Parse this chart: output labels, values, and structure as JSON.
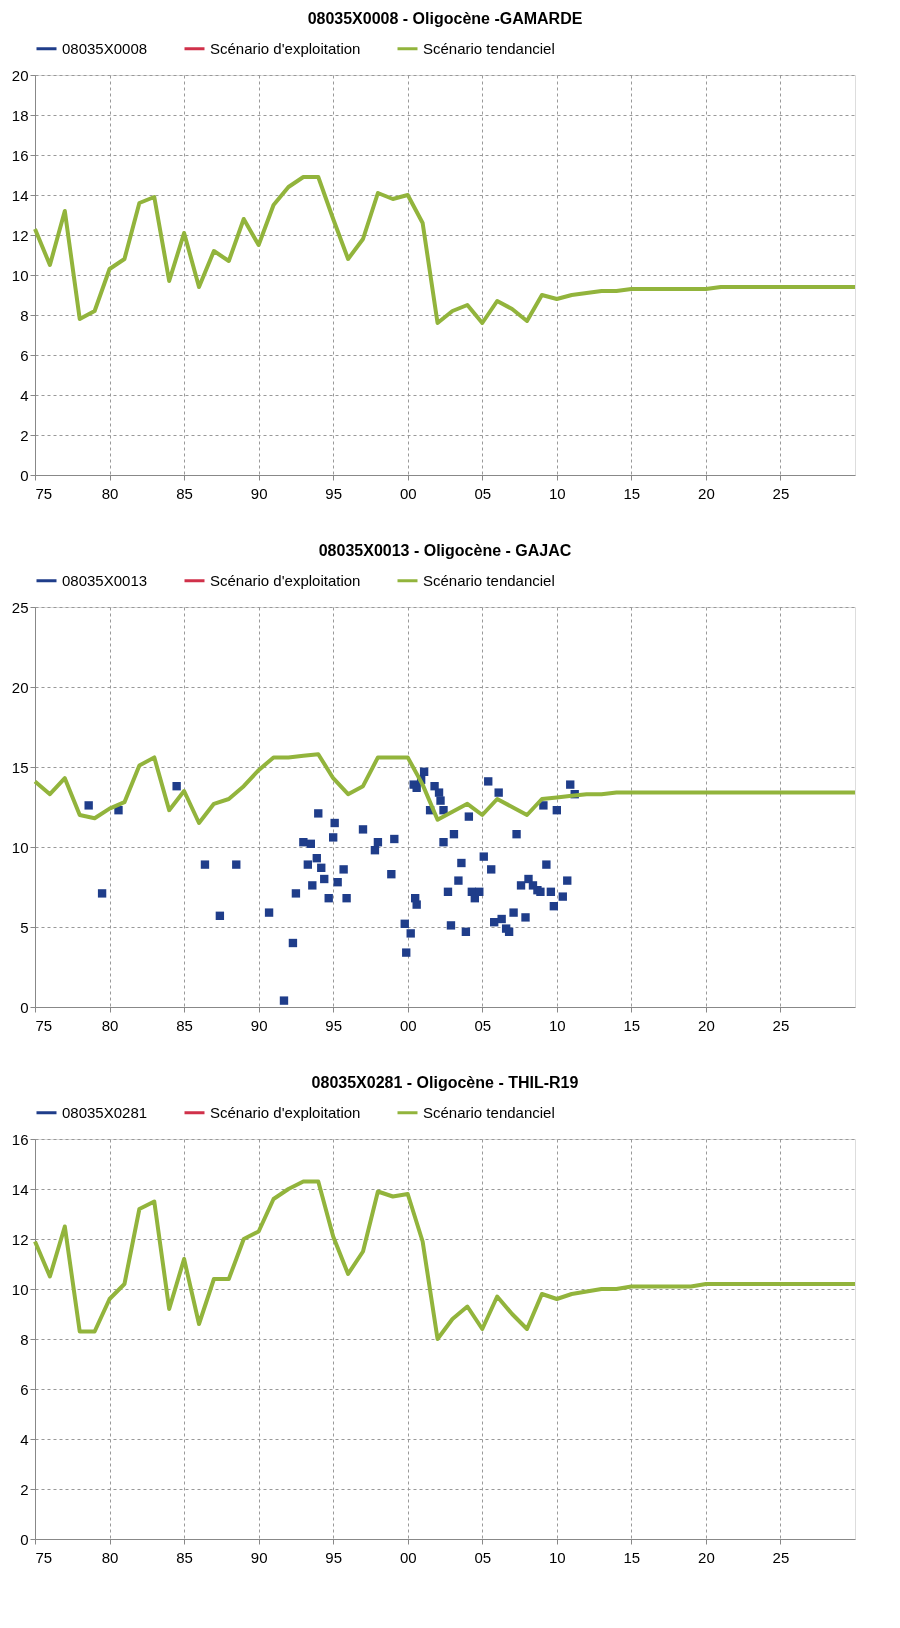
{
  "chart_data": [
    {
      "type": "line",
      "title": "08035X0008 - Oligocène -GAMARDE",
      "legend": "top",
      "grid": true,
      "line_style": "solid",
      "x": [
        1975,
        1976,
        1977,
        1978,
        1979,
        1980,
        1981,
        1982,
        1983,
        1984,
        1985,
        1986,
        1987,
        1988,
        1989,
        1990,
        1991,
        1992,
        1993,
        1994,
        1995,
        1996,
        1997,
        1998,
        1999,
        2000,
        2001,
        2002,
        2003,
        2004,
        2005,
        2006,
        2007,
        2008,
        2009,
        2010,
        2011,
        2012,
        2013,
        2014,
        2015,
        2016,
        2017,
        2018,
        2019,
        2020,
        2021,
        2022,
        2023,
        2024,
        2025,
        2026,
        2027,
        2028,
        2029,
        2030
      ],
      "xlim": [
        1975,
        2030
      ],
      "xticks": [
        {
          "value": 1975,
          "label": "75"
        },
        {
          "value": 1980,
          "label": "80"
        },
        {
          "value": 1985,
          "label": "85"
        },
        {
          "value": 1990,
          "label": "90"
        },
        {
          "value": 1995,
          "label": "95"
        },
        {
          "value": 2000,
          "label": "00"
        },
        {
          "value": 2005,
          "label": "05"
        },
        {
          "value": 2010,
          "label": "10"
        },
        {
          "value": 2015,
          "label": "15"
        },
        {
          "value": 2020,
          "label": "20"
        },
        {
          "value": 2025,
          "label": "25"
        }
      ],
      "ylim": [
        0,
        20
      ],
      "yticks": [
        0,
        2,
        4,
        6,
        8,
        10,
        12,
        14,
        16,
        18,
        20
      ],
      "series": [
        {
          "name": "08035X0008",
          "type": "line",
          "marker": "square",
          "color": "#1f3d8a",
          "values": [
            null,
            null,
            null,
            null,
            null,
            null,
            null,
            null,
            null,
            null,
            null,
            null,
            null,
            null,
            null,
            null,
            null,
            null,
            null,
            null,
            null,
            null,
            null,
            null,
            null,
            null,
            null,
            null,
            null,
            null,
            null,
            null,
            null,
            null,
            null,
            null,
            null,
            null,
            null,
            null,
            null,
            null,
            null,
            null,
            null,
            null,
            null,
            null,
            null,
            null,
            null,
            null,
            null,
            null,
            null,
            null
          ]
        },
        {
          "name": "Scénario d'exploitation",
          "type": "line",
          "color": "#d0314a",
          "values": [
            null,
            null,
            null,
            null,
            null,
            null,
            null,
            null,
            null,
            null,
            null,
            null,
            null,
            null,
            null,
            null,
            null,
            null,
            null,
            null,
            null,
            null,
            null,
            null,
            null,
            null,
            null,
            null,
            null,
            null,
            null,
            null,
            null,
            null,
            null,
            null,
            null,
            null,
            null,
            null,
            null,
            null,
            null,
            null,
            null,
            null,
            null,
            null,
            null,
            null,
            null,
            null,
            null,
            null,
            null,
            null
          ]
        },
        {
          "name": "Scénario tendanciel",
          "type": "line",
          "color": "#92b43c",
          "values": [
            12.3,
            10.5,
            13.2,
            7.8,
            8.2,
            10.3,
            10.8,
            13.6,
            13.9,
            9.7,
            12.1,
            9.4,
            11.2,
            10.7,
            12.8,
            11.5,
            13.5,
            14.4,
            14.9,
            14.9,
            12.8,
            10.8,
            11.8,
            14.1,
            13.8,
            14.0,
            12.6,
            7.6,
            8.2,
            8.5,
            7.6,
            8.7,
            8.3,
            7.7,
            9.0,
            8.8,
            9.0,
            9.1,
            9.2,
            9.2,
            9.3,
            9.3,
            9.3,
            9.3,
            9.3,
            9.3,
            9.4,
            9.4,
            9.4,
            9.4,
            9.4,
            9.4,
            9.4,
            9.4,
            9.4,
            9.4
          ]
        }
      ]
    },
    {
      "type": "line",
      "title": "08035X0013 - Oligocène - GAJAC",
      "legend": "top",
      "grid": true,
      "line_style": "solid",
      "x": [
        1975,
        1976,
        1977,
        1978,
        1979,
        1980,
        1981,
        1982,
        1983,
        1984,
        1985,
        1986,
        1987,
        1988,
        1989,
        1990,
        1991,
        1992,
        1993,
        1994,
        1995,
        1996,
        1997,
        1998,
        1999,
        2000,
        2001,
        2002,
        2003,
        2004,
        2005,
        2006,
        2007,
        2008,
        2009,
        2010,
        2011,
        2012,
        2013,
        2014,
        2015,
        2016,
        2017,
        2018,
        2019,
        2020,
        2021,
        2022,
        2023,
        2024,
        2025,
        2026,
        2027,
        2028,
        2029,
        2030
      ],
      "xlim": [
        1975,
        2030
      ],
      "xticks": [
        {
          "value": 1975,
          "label": "75"
        },
        {
          "value": 1980,
          "label": "80"
        },
        {
          "value": 1985,
          "label": "85"
        },
        {
          "value": 1990,
          "label": "90"
        },
        {
          "value": 1995,
          "label": "95"
        },
        {
          "value": 2000,
          "label": "00"
        },
        {
          "value": 2005,
          "label": "05"
        },
        {
          "value": 2010,
          "label": "10"
        },
        {
          "value": 2015,
          "label": "15"
        },
        {
          "value": 2020,
          "label": "20"
        },
        {
          "value": 2025,
          "label": "25"
        }
      ],
      "ylim": [
        0,
        25
      ],
      "yticks": [
        0,
        5,
        10,
        15,
        20,
        25
      ],
      "series": [
        {
          "name": "08035X0013",
          "type": "scatter",
          "marker": "square",
          "color": "#1f3d8a",
          "x": [
            1978.6,
            1979.5,
            1980.6,
            1984.5,
            1986.4,
            1987.4,
            1988.5,
            1990.7,
            1991.7,
            1992.3,
            1992.5,
            1993.0,
            1993.5,
            1993.3,
            1993.6,
            1993.9,
            1994.0,
            1994.2,
            1994.4,
            1994.7,
            1995.1,
            1995.0,
            1995.3,
            1995.7,
            1995.9,
            1997.0,
            1997.8,
            1998.0,
            1998.9,
            1999.1,
            1999.8,
            1999.9,
            2000.2,
            2000.4,
            2000.6,
            2001.1,
            2000.9,
            2000.5,
            2000.6,
            2001.8,
            2002.1,
            2002.2,
            2001.5,
            2002.4,
            2002.4,
            2003.1,
            2004.1,
            2002.7,
            2002.9,
            2003.4,
            2003.6,
            2003.9,
            2004.3,
            2004.5,
            2004.8,
            2005.1,
            2005.4,
            2005.6,
            2006.1,
            2005.8,
            2006.3,
            2006.6,
            2006.8,
            2007.1,
            2007.3,
            2007.9,
            2007.6,
            2008.1,
            2008.4,
            2008.7,
            2008.9,
            2009.1,
            2009.3,
            2009.6,
            2009.8,
            2010.0,
            2010.4,
            2010.7,
            2010.9,
            2011.2
          ],
          "values": [
            12.6,
            7.1,
            12.3,
            13.8,
            8.9,
            5.7,
            8.9,
            5.9,
            0.4,
            4.0,
            7.1,
            10.3,
            10.2,
            8.9,
            7.6,
            9.3,
            12.1,
            8.7,
            8.0,
            6.8,
            11.5,
            10.6,
            7.8,
            8.6,
            6.8,
            11.1,
            9.8,
            10.3,
            8.3,
            10.5,
            5.2,
            3.4,
            4.6,
            13.9,
            13.7,
            14.7,
            14.2,
            6.8,
            6.4,
            13.8,
            13.4,
            12.9,
            12.3,
            12.3,
            10.3,
            10.8,
            11.9,
            7.2,
            5.1,
            7.9,
            9.0,
            4.7,
            7.2,
            6.8,
            7.2,
            9.4,
            14.1,
            8.6,
            13.4,
            5.3,
            5.5,
            4.9,
            4.7,
            5.9,
            10.8,
            5.6,
            7.6,
            8.0,
            7.6,
            7.3,
            7.2,
            12.6,
            8.9,
            7.2,
            6.3,
            12.3,
            6.9,
            7.9,
            13.9,
            13.3
          ]
        },
        {
          "name": "Scénario d'exploitation",
          "type": "line",
          "color": "#d0314a",
          "values": [
            null,
            null,
            null,
            null,
            null,
            null,
            null,
            null,
            null,
            null,
            null,
            null,
            null,
            null,
            null,
            null,
            null,
            null,
            null,
            null,
            null,
            null,
            null,
            null,
            null,
            null,
            null,
            null,
            null,
            null,
            null,
            null,
            null,
            null,
            null,
            null,
            null,
            null,
            null,
            null,
            null,
            null,
            null,
            null,
            null,
            null,
            null,
            null,
            null,
            null,
            null,
            null,
            null,
            null,
            null,
            null
          ]
        },
        {
          "name": "Scénario tendanciel",
          "type": "line",
          "color": "#92b43c",
          "values": [
            14.1,
            13.3,
            14.3,
            12.0,
            11.8,
            12.4,
            12.8,
            15.1,
            15.6,
            12.3,
            13.5,
            11.5,
            12.7,
            13.0,
            13.8,
            14.8,
            15.6,
            15.6,
            15.7,
            15.8,
            14.3,
            13.3,
            13.8,
            15.6,
            15.6,
            15.6,
            13.9,
            11.7,
            12.2,
            12.7,
            12.0,
            13.0,
            12.5,
            12.0,
            13.0,
            13.1,
            13.2,
            13.3,
            13.3,
            13.4,
            13.4,
            13.4,
            13.4,
            13.4,
            13.4,
            13.4,
            13.4,
            13.4,
            13.4,
            13.4,
            13.4,
            13.4,
            13.4,
            13.4,
            13.4,
            13.4
          ]
        }
      ]
    },
    {
      "type": "line",
      "title": "08035X0281 - Oligocène - THIL-R19",
      "legend": "top",
      "grid": true,
      "line_style": "solid",
      "x": [
        1975,
        1976,
        1977,
        1978,
        1979,
        1980,
        1981,
        1982,
        1983,
        1984,
        1985,
        1986,
        1987,
        1988,
        1989,
        1990,
        1991,
        1992,
        1993,
        1994,
        1995,
        1996,
        1997,
        1998,
        1999,
        2000,
        2001,
        2002,
        2003,
        2004,
        2005,
        2006,
        2007,
        2008,
        2009,
        2010,
        2011,
        2012,
        2013,
        2014,
        2015,
        2016,
        2017,
        2018,
        2019,
        2020,
        2021,
        2022,
        2023,
        2024,
        2025,
        2026,
        2027,
        2028,
        2029,
        2030
      ],
      "xlim": [
        1975,
        2030
      ],
      "xticks": [
        {
          "value": 1975,
          "label": "75"
        },
        {
          "value": 1980,
          "label": "80"
        },
        {
          "value": 1985,
          "label": "85"
        },
        {
          "value": 1990,
          "label": "90"
        },
        {
          "value": 1995,
          "label": "95"
        },
        {
          "value": 2000,
          "label": "00"
        },
        {
          "value": 2005,
          "label": "05"
        },
        {
          "value": 2010,
          "label": "10"
        },
        {
          "value": 2015,
          "label": "15"
        },
        {
          "value": 2020,
          "label": "20"
        },
        {
          "value": 2025,
          "label": "25"
        }
      ],
      "ylim": [
        0,
        16
      ],
      "yticks": [
        0,
        2,
        4,
        6,
        8,
        10,
        12,
        14,
        16
      ],
      "series": [
        {
          "name": "08035X0281",
          "type": "line",
          "marker": "square",
          "color": "#1f3d8a",
          "values": [
            null,
            null,
            null,
            null,
            null,
            null,
            null,
            null,
            null,
            null,
            null,
            null,
            null,
            null,
            null,
            null,
            null,
            null,
            null,
            null,
            null,
            null,
            null,
            null,
            null,
            null,
            null,
            null,
            null,
            null,
            null,
            null,
            null,
            null,
            null,
            null,
            null,
            null,
            null,
            null,
            null,
            null,
            null,
            null,
            null,
            null,
            null,
            null,
            null,
            null,
            null,
            null,
            null,
            null,
            null,
            null
          ]
        },
        {
          "name": "Scénario d'exploitation",
          "type": "line",
          "color": "#d0314a",
          "values": [
            null,
            null,
            null,
            null,
            null,
            null,
            null,
            null,
            null,
            null,
            null,
            null,
            null,
            null,
            null,
            null,
            null,
            null,
            null,
            null,
            null,
            null,
            null,
            null,
            null,
            null,
            null,
            null,
            null,
            null,
            null,
            null,
            null,
            null,
            null,
            null,
            null,
            null,
            null,
            null,
            null,
            null,
            null,
            null,
            null,
            null,
            null,
            null,
            null,
            null,
            null,
            null,
            null,
            null,
            null,
            null
          ]
        },
        {
          "name": "Scénario tendanciel",
          "type": "line",
          "color": "#92b43c",
          "values": [
            11.9,
            10.5,
            12.5,
            8.3,
            8.3,
            9.6,
            10.2,
            13.2,
            13.5,
            9.2,
            11.2,
            8.6,
            10.4,
            10.4,
            12.0,
            12.3,
            13.6,
            14.0,
            14.3,
            14.3,
            12.1,
            10.6,
            11.5,
            13.9,
            13.7,
            13.8,
            11.9,
            8.0,
            8.8,
            9.3,
            8.4,
            9.7,
            9.0,
            8.4,
            9.8,
            9.6,
            9.8,
            9.9,
            10.0,
            10.0,
            10.1,
            10.1,
            10.1,
            10.1,
            10.1,
            10.2,
            10.2,
            10.2,
            10.2,
            10.2,
            10.2,
            10.2,
            10.2,
            10.2,
            10.2,
            10.2
          ]
        }
      ]
    }
  ]
}
